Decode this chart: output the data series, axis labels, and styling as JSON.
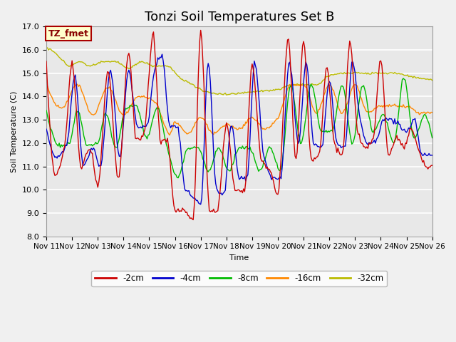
{
  "title": "Tonzi Soil Temperatures Set B",
  "xlabel": "Time",
  "ylabel": "Soil Temperature (C)",
  "ylim": [
    8.0,
    17.0
  ],
  "yticks": [
    8.0,
    9.0,
    10.0,
    11.0,
    12.0,
    13.0,
    14.0,
    15.0,
    16.0,
    17.0
  ],
  "xtick_labels": [
    "Nov 11",
    "Nov 12",
    "Nov 13",
    "Nov 14",
    "Nov 15",
    "Nov 16",
    "Nov 17",
    "Nov 18",
    "Nov 19",
    "Nov 20",
    "Nov 21",
    "Nov 22",
    "Nov 23",
    "Nov 24",
    "Nov 25",
    "Nov 26"
  ],
  "legend_entries": [
    "-2cm",
    "-4cm",
    "-8cm",
    "-16cm",
    "-32cm"
  ],
  "line_colors": [
    "#cc0000",
    "#0000cc",
    "#00bb00",
    "#ff8800",
    "#bbbb00"
  ],
  "label_box_color": "#ffffcc",
  "label_box_edge": "#aa0000",
  "label_text": "TZ_fmet",
  "label_text_color": "#880000",
  "plot_bg_color": "#e8e8e8",
  "fig_bg_color": "#f0f0f0",
  "title_fontsize": 13
}
